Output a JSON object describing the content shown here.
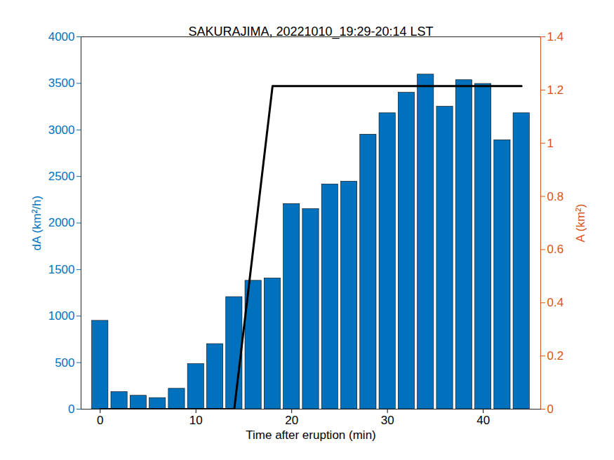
{
  "chart_data": {
    "type": "bar",
    "title": "SAKURAJIMA, 20221010_19:29-20:14 LST",
    "x_label": "Time after eruption (min)",
    "y_label": "dA (km²/h)",
    "y2_label": "A (km²)",
    "xlim": [
      -2,
      46
    ],
    "xticks": [
      0,
      10,
      20,
      30,
      40
    ],
    "ylim": [
      0,
      4000
    ],
    "yticks": [
      0,
      500,
      1000,
      1500,
      2000,
      2500,
      3000,
      3500,
      4000
    ],
    "y2lim": [
      0,
      1.4
    ],
    "y2ticks": [
      0,
      0.2,
      0.4,
      0.6,
      0.8,
      1,
      1.2,
      1.4
    ],
    "series": [
      {
        "type": "bar",
        "color": "#0072bd",
        "x": [
          0,
          2,
          4,
          6,
          8,
          10,
          12,
          14,
          16,
          18,
          20,
          22,
          24,
          26,
          28,
          30,
          32,
          34,
          36,
          38,
          40,
          42,
          44
        ],
        "values": [
          950,
          185,
          145,
          120,
          220,
          485,
          700,
          1205,
          1380,
          1405,
          2205,
          2150,
          2415,
          2445,
          2950,
          3180,
          3400,
          3595,
          3250,
          3535,
          3495,
          2890,
          3180
        ]
      },
      {
        "type": "line",
        "axis": "y2",
        "color": "#000000",
        "x": [
          0,
          14,
          18,
          44
        ],
        "values": [
          0,
          0,
          1.215,
          1.215
        ]
      }
    ]
  }
}
